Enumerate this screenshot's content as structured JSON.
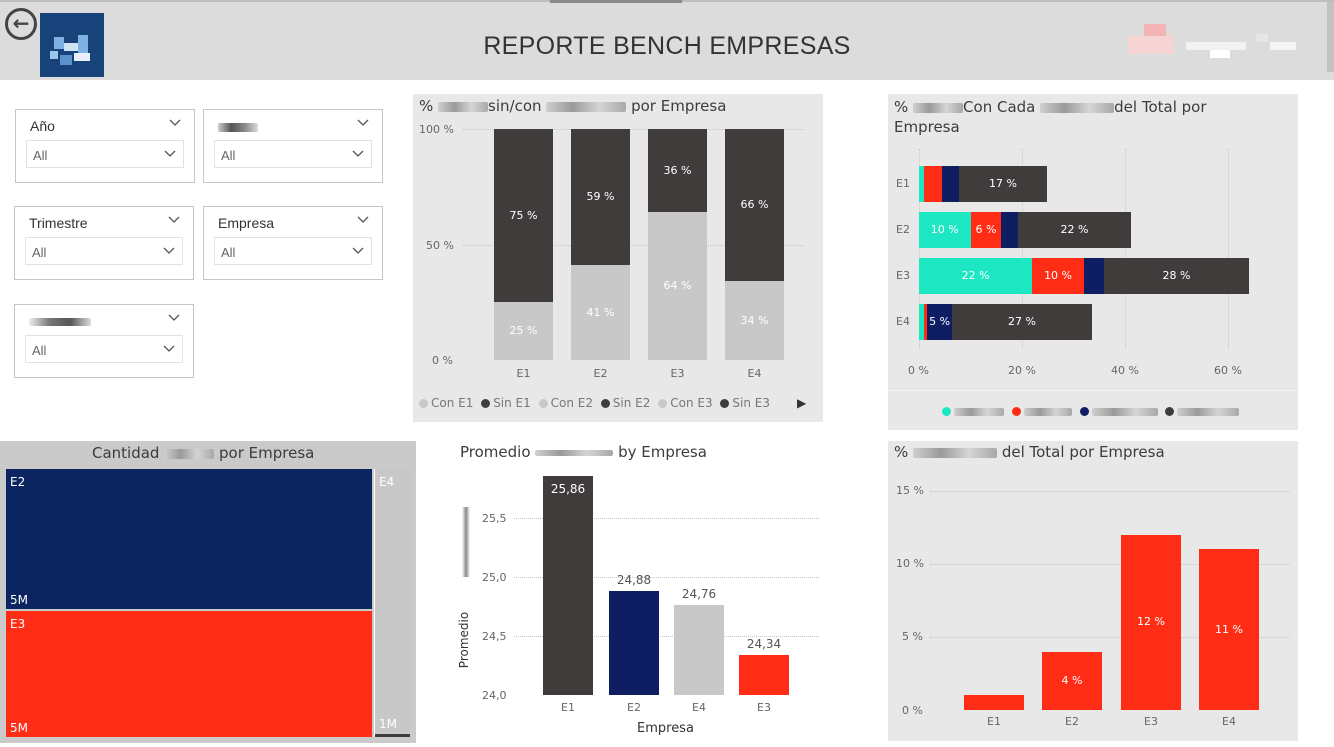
{
  "header": {
    "title": "REPORTE BENCH EMPRESAS",
    "back_icon": "back-arrow-icon"
  },
  "slicers": [
    {
      "label": "Año",
      "value": "All"
    },
    {
      "label": "",
      "value": "All"
    },
    {
      "label": "Trimestre",
      "value": "All"
    },
    {
      "label": "Empresa",
      "value": "All"
    },
    {
      "label": "",
      "value": "All"
    }
  ],
  "colors": {
    "dark": "#403c3c",
    "light": "#c8c8c8",
    "navy": "#0f1e63",
    "navy_treemap": "#0a2560",
    "red": "#ff2d16",
    "teal": "#1ee8c3"
  },
  "stacked100": {
    "title_prefix": "%",
    "title_mid": "sin/con",
    "title_suffix": "por Empresa",
    "ticks": [
      "100 %",
      "50 %",
      "0 %"
    ],
    "legend": [
      "Con E1",
      "Sin E1",
      "Con E2",
      "Sin E2",
      "Con E3",
      "Sin E3"
    ],
    "legend_more_icon": "chevron-right-icon"
  },
  "hbar": {
    "title_l1_prefix": "%",
    "title_l1_mid": "Con Cada",
    "title_l1_suffix": "del Total por",
    "title_l2": "Empresa",
    "ticks": [
      "0 %",
      "20 %",
      "40 %",
      "60 %"
    ]
  },
  "treemap": {
    "title_prefix": "Cantidad",
    "title_suffix": "por Empresa",
    "cells": [
      {
        "label": "E2",
        "value": "5M"
      },
      {
        "label": "E3",
        "value": "5M"
      },
      {
        "label": "E4",
        "value": "1M"
      }
    ]
  },
  "avgbar": {
    "title_prefix": "Promedio",
    "title_suffix": "by Empresa",
    "ylabel": "Promedio",
    "xlabel": "Empresa",
    "ticks": [
      "25,5",
      "25,0",
      "24,5",
      "24,0"
    ]
  },
  "pctbar": {
    "title_prefix": "%",
    "title_suffix": "del Total por Empresa",
    "ticks": [
      "15 %",
      "10 %",
      "5 %",
      "0 %"
    ]
  },
  "chart_data": [
    {
      "type": "bar",
      "stacked": "100%",
      "categories": [
        "E1",
        "E2",
        "E3",
        "E4"
      ],
      "series": [
        {
          "name": "Con",
          "color": "#c8c8c8",
          "values": [
            25,
            41,
            64,
            34
          ],
          "labels": [
            "25 %",
            "41 %",
            "64 %",
            "34 %"
          ]
        },
        {
          "name": "Sin",
          "color": "#403c3c",
          "values": [
            75,
            59,
            36,
            66
          ],
          "labels": [
            "75 %",
            "59 %",
            "36 %",
            "66 %"
          ]
        }
      ],
      "ylim": [
        0,
        100
      ]
    },
    {
      "type": "bar",
      "orientation": "horizontal",
      "stacked": true,
      "categories": [
        "E1",
        "E2",
        "E3",
        "E4"
      ],
      "series": [
        {
          "color": "#1ee8c3",
          "values": [
            1,
            10,
            22,
            1
          ],
          "labels": [
            "",
            "10 %",
            "22 %",
            ""
          ]
        },
        {
          "color": "#ff2d16",
          "values": [
            3.5,
            6,
            10,
            0.5
          ],
          "labels": [
            "",
            "6 %",
            "10 %",
            ""
          ]
        },
        {
          "color": "#0f1e63",
          "values": [
            3.3,
            3.2,
            4,
            5
          ],
          "labels": [
            "",
            "",
            "",
            "5 %"
          ]
        },
        {
          "color": "#403c3c",
          "values": [
            17,
            22,
            28,
            27
          ],
          "labels": [
            "17 %",
            "22 %",
            "28 %",
            "27 %"
          ]
        }
      ],
      "xlim": [
        0,
        63
      ]
    },
    {
      "type": "treemap",
      "categories": [
        "E2",
        "E3",
        "E4"
      ],
      "values": [
        5,
        5,
        1
      ],
      "labels": [
        "5M",
        "5M",
        "1M"
      ],
      "colors": [
        "#0a2560",
        "#ff2d16",
        "#c8c8c8"
      ]
    },
    {
      "type": "bar",
      "categories": [
        "E1",
        "E2",
        "E4",
        "E3"
      ],
      "values": [
        25.86,
        24.88,
        24.76,
        24.34
      ],
      "labels": [
        "25,86",
        "24,88",
        "24,76",
        "24,34"
      ],
      "colors": [
        "#403c3c",
        "#0f1e63",
        "#c8c8c8",
        "#ff2d16"
      ],
      "ylim": [
        24.0,
        25.95
      ]
    },
    {
      "type": "bar",
      "categories": [
        "E1",
        "E2",
        "E3",
        "E4"
      ],
      "values": [
        1,
        4,
        12,
        11
      ],
      "labels": [
        "",
        "4 %",
        "12 %",
        "11 %"
      ],
      "color": "#ff2d16",
      "ylim": [
        0,
        15
      ]
    }
  ]
}
